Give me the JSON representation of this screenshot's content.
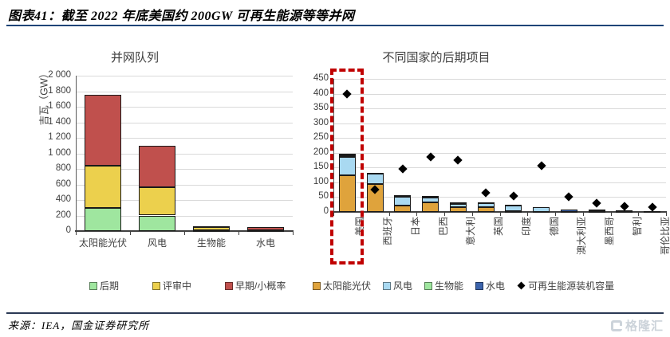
{
  "header": {
    "title": "图表41：截至 2022 年底美国约 200GW 可再生能源等等并网"
  },
  "footer": {
    "source": "来源：IEA，国金证券研究所",
    "watermark_text": "格隆汇"
  },
  "colors": {
    "late_stage_green": "#9fe69f",
    "review_yellow": "#ecd04d",
    "early_red": "#c0504d",
    "solar_orange": "#dfa33c",
    "wind_lightblue": "#a9d9f1",
    "bio_green": "#9fe69f",
    "hydro_darkblue": "#3c64ac",
    "diamond_black": "#000000",
    "highlight_red_dashed": "#c00000",
    "header_rule_navy": "#1f4478"
  },
  "chart_data": [
    {
      "type": "bar",
      "stacked": true,
      "title": "并网队列",
      "ylabel": "吉瓦（GW）",
      "xlabel": "",
      "ylim": [
        0,
        2000
      ],
      "ytick_step": 200,
      "ytick_labels": [
        "0",
        "200",
        "400",
        "600",
        "800",
        "1 000",
        "1 200",
        "1 400",
        "1 600",
        "1 800",
        "2 000"
      ],
      "grid": true,
      "legend_position": "bottom",
      "categories": [
        "太阳能光伏",
        "风电",
        "生物能",
        "水电"
      ],
      "series": [
        {
          "name": "后期",
          "color": "#9fe69f",
          "values": [
            300,
            200,
            8,
            5
          ]
        },
        {
          "name": "评审中",
          "color": "#ecd04d",
          "values": [
            540,
            360,
            40,
            10
          ]
        },
        {
          "name": "早期/小概率",
          "color": "#c0504d",
          "values": [
            910,
            540,
            12,
            35
          ]
        }
      ]
    },
    {
      "type": "bar",
      "stacked": true,
      "title": "不同国家的后期项目",
      "ylabel": "",
      "xlabel": "",
      "ylim": [
        0,
        450
      ],
      "ytick_step": 50,
      "ytick_labels": [
        "0",
        "50",
        "100",
        "150",
        "200",
        "250",
        "300",
        "350",
        "400",
        "450"
      ],
      "grid": true,
      "legend_position": "bottom",
      "categories": [
        "美国",
        "西班牙",
        "日本",
        "巴西",
        "意大利",
        "英国",
        "印度",
        "德国",
        "澳大利亚",
        "墨西哥",
        "智利",
        "哥伦比亚"
      ],
      "series": [
        {
          "name": "太阳能光伏",
          "color": "#dfa33c",
          "values": [
            125,
            95,
            22,
            32,
            15,
            17,
            2,
            1,
            0,
            1,
            1,
            0
          ]
        },
        {
          "name": "风电",
          "color": "#a9d9f1",
          "values": [
            62,
            33,
            30,
            16,
            13,
            12,
            19,
            14,
            1,
            4,
            1,
            1
          ]
        },
        {
          "name": "生物能",
          "color": "#9fe69f",
          "values": [
            5,
            2,
            3,
            2,
            0,
            1,
            1,
            0,
            0,
            0,
            0,
            0
          ]
        },
        {
          "name": "水电",
          "color": "#3c64ac",
          "values": [
            3,
            0,
            0,
            1,
            5,
            0,
            0,
            0,
            6,
            1,
            0,
            0
          ]
        }
      ],
      "scatter": {
        "name": "可再生能源装机容量",
        "marker": "diamond",
        "color": "#000000",
        "values": [
          400,
          75,
          145,
          185,
          175,
          65,
          55,
          155,
          50,
          30,
          20,
          15
        ]
      },
      "highlight": {
        "category": "美国",
        "style": "red-dashed-box"
      }
    }
  ]
}
